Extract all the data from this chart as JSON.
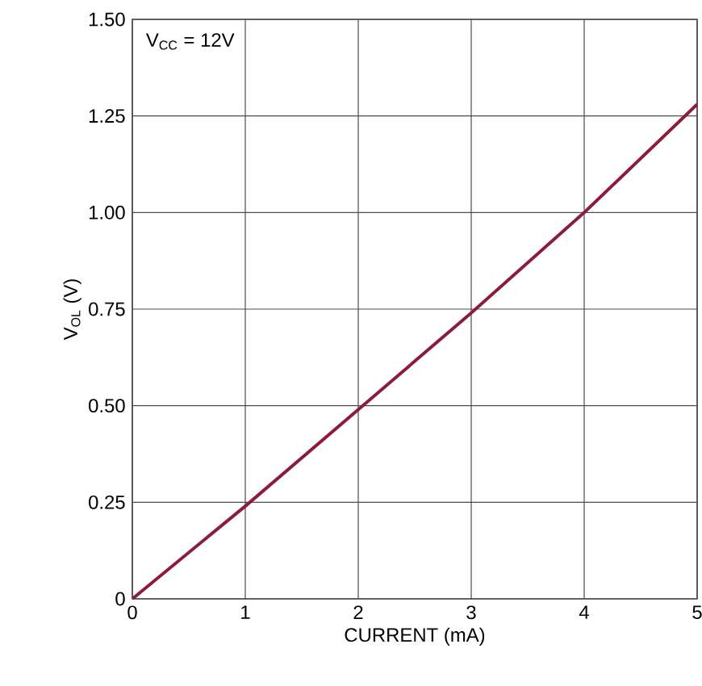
{
  "chart_data": {
    "type": "line",
    "xlabel": "CURRENT (mA)",
    "ylabel": "V$_{OL}$ (V)",
    "annotations": [
      "V$_{CC}$ = 12V"
    ],
    "x": [
      0,
      1,
      2,
      3,
      4,
      5
    ],
    "series": [
      {
        "color": "#8c1c3c",
        "values": [
          0,
          0.24,
          0.49,
          0.74,
          1.0,
          1.28
        ]
      }
    ],
    "xlim": [
      0,
      5
    ],
    "ylim": [
      0,
      1.5
    ],
    "xticks": [
      0,
      1,
      2,
      3,
      4,
      5
    ],
    "yticks": [
      {
        "value": 0,
        "label": "0"
      },
      {
        "value": 0.25,
        "label": "0.25"
      },
      {
        "value": 0.5,
        "label": "0.50"
      },
      {
        "value": 0.75,
        "label": "0.75"
      },
      {
        "value": 1.0,
        "label": "1.00"
      },
      {
        "value": 1.25,
        "label": "1.25"
      },
      {
        "value": 1.5,
        "label": "1.50"
      }
    ],
    "grid": true
  }
}
